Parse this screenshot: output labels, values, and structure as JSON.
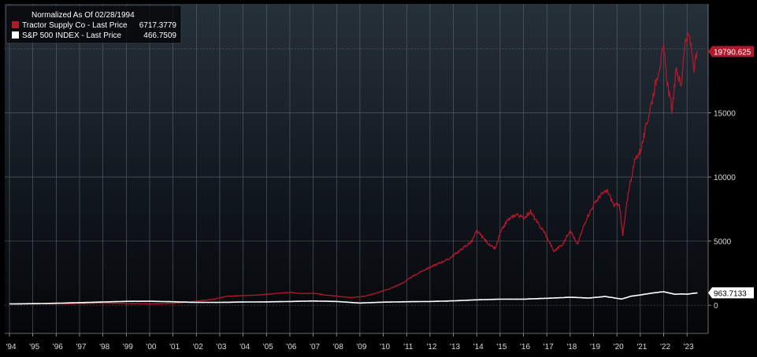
{
  "chart_data": {
    "type": "line",
    "title": "Normalized As Of 02/28/1994",
    "legend_placement": "top-left",
    "grid": true,
    "background": "#000000",
    "x_tick_labels": [
      "'94",
      "'95",
      "'96",
      "'97",
      "'98",
      "'99",
      "'00",
      "'01",
      "'02",
      "'03",
      "'04",
      "'05",
      "'06",
      "'07",
      "'08",
      "'09",
      "'10",
      "'11",
      "'12",
      "'13",
      "'14",
      "'15",
      "'16",
      "'17",
      "'18",
      "'19",
      "'20",
      "'21",
      "'22",
      "'23"
    ],
    "xlim": [
      1994.0,
      2023.5
    ],
    "ylim": [
      -2200,
      23500
    ],
    "y_ticks": [
      0,
      5000,
      10000,
      15000
    ],
    "series": [
      {
        "name": "Tractor Supply Co - Last Price",
        "legend_value": "6717.3779",
        "last_value_tag": "19790.625",
        "color": "#b0182c",
        "tag_color": "#b0182c",
        "points": [
          [
            1994.0,
            100
          ],
          [
            1995.0,
            110
          ],
          [
            1996.0,
            130
          ],
          [
            1997.0,
            140
          ],
          [
            1998.0,
            160
          ],
          [
            1999.0,
            140
          ],
          [
            2000.0,
            110
          ],
          [
            2001.0,
            150
          ],
          [
            2002.0,
            300
          ],
          [
            2002.8,
            500
          ],
          [
            2003.3,
            700
          ],
          [
            2004.0,
            750
          ],
          [
            2004.7,
            800
          ],
          [
            2005.3,
            900
          ],
          [
            2006.0,
            1000
          ],
          [
            2006.5,
            900
          ],
          [
            2007.0,
            950
          ],
          [
            2007.5,
            800
          ],
          [
            2008.0,
            700
          ],
          [
            2008.6,
            600
          ],
          [
            2009.2,
            700
          ],
          [
            2009.8,
            1000
          ],
          [
            2010.3,
            1300
          ],
          [
            2010.8,
            1700
          ],
          [
            2011.3,
            2300
          ],
          [
            2011.8,
            2800
          ],
          [
            2012.3,
            3200
          ],
          [
            2012.8,
            3600
          ],
          [
            2013.3,
            4300
          ],
          [
            2013.8,
            5000
          ],
          [
            2014.0,
            5800
          ],
          [
            2014.3,
            5200
          ],
          [
            2014.6,
            4600
          ],
          [
            2014.8,
            4400
          ],
          [
            2015.0,
            5600
          ],
          [
            2015.3,
            6600
          ],
          [
            2015.7,
            7100
          ],
          [
            2016.0,
            6800
          ],
          [
            2016.3,
            7300
          ],
          [
            2016.6,
            6400
          ],
          [
            2016.9,
            5700
          ],
          [
            2017.3,
            4200
          ],
          [
            2017.7,
            4800
          ],
          [
            2018.0,
            5900
          ],
          [
            2018.3,
            4700
          ],
          [
            2018.7,
            6800
          ],
          [
            2019.0,
            7800
          ],
          [
            2019.3,
            8600
          ],
          [
            2019.6,
            8900
          ],
          [
            2019.9,
            7700
          ],
          [
            2020.1,
            8000
          ],
          [
            2020.25,
            5400
          ],
          [
            2020.5,
            9000
          ],
          [
            2020.8,
            11500
          ],
          [
            2021.0,
            12000
          ],
          [
            2021.2,
            13500
          ],
          [
            2021.5,
            16000
          ],
          [
            2021.8,
            18500
          ],
          [
            2022.0,
            20000
          ],
          [
            2022.15,
            17500
          ],
          [
            2022.35,
            15200
          ],
          [
            2022.55,
            18500
          ],
          [
            2022.75,
            17000
          ],
          [
            2022.9,
            20500
          ],
          [
            2023.1,
            21000
          ],
          [
            2023.3,
            18500
          ],
          [
            2023.45,
            19790
          ]
        ]
      },
      {
        "name": "S&P 500 INDEX - Last Price",
        "legend_value": "466.7509",
        "last_value_tag": "963.7133",
        "color": "#ffffff",
        "tag_color": "#ffffff",
        "points": [
          [
            1994.0,
            100
          ],
          [
            1995.0,
            120
          ],
          [
            1996.0,
            150
          ],
          [
            1997.0,
            200
          ],
          [
            1998.0,
            250
          ],
          [
            1999.0,
            300
          ],
          [
            2000.0,
            310
          ],
          [
            2001.0,
            270
          ],
          [
            2002.0,
            220
          ],
          [
            2003.0,
            220
          ],
          [
            2004.0,
            250
          ],
          [
            2005.0,
            260
          ],
          [
            2006.0,
            290
          ],
          [
            2007.0,
            330
          ],
          [
            2008.0,
            290
          ],
          [
            2009.0,
            170
          ],
          [
            2010.0,
            240
          ],
          [
            2011.0,
            270
          ],
          [
            2012.0,
            290
          ],
          [
            2013.0,
            340
          ],
          [
            2014.0,
            420
          ],
          [
            2015.0,
            470
          ],
          [
            2016.0,
            470
          ],
          [
            2017.0,
            540
          ],
          [
            2018.0,
            620
          ],
          [
            2018.8,
            560
          ],
          [
            2019.5,
            680
          ],
          [
            2020.2,
            480
          ],
          [
            2020.6,
            700
          ],
          [
            2021.0,
            800
          ],
          [
            2021.5,
            950
          ],
          [
            2022.0,
            1050
          ],
          [
            2022.5,
            850
          ],
          [
            2022.8,
            880
          ],
          [
            2023.0,
            860
          ],
          [
            2023.45,
            963
          ]
        ]
      }
    ]
  }
}
